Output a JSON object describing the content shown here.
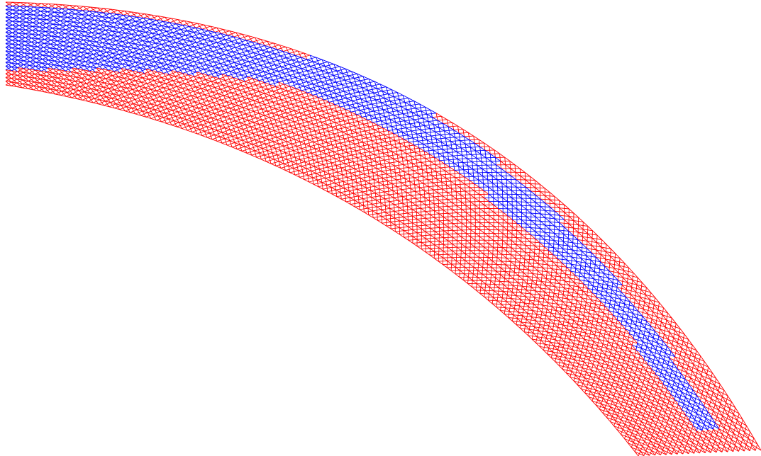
{
  "figure": {
    "colors": {
      "background": "#ffffff",
      "primary_band": "#ff0000",
      "secondary_band": "#0000ff"
    }
  }
}
